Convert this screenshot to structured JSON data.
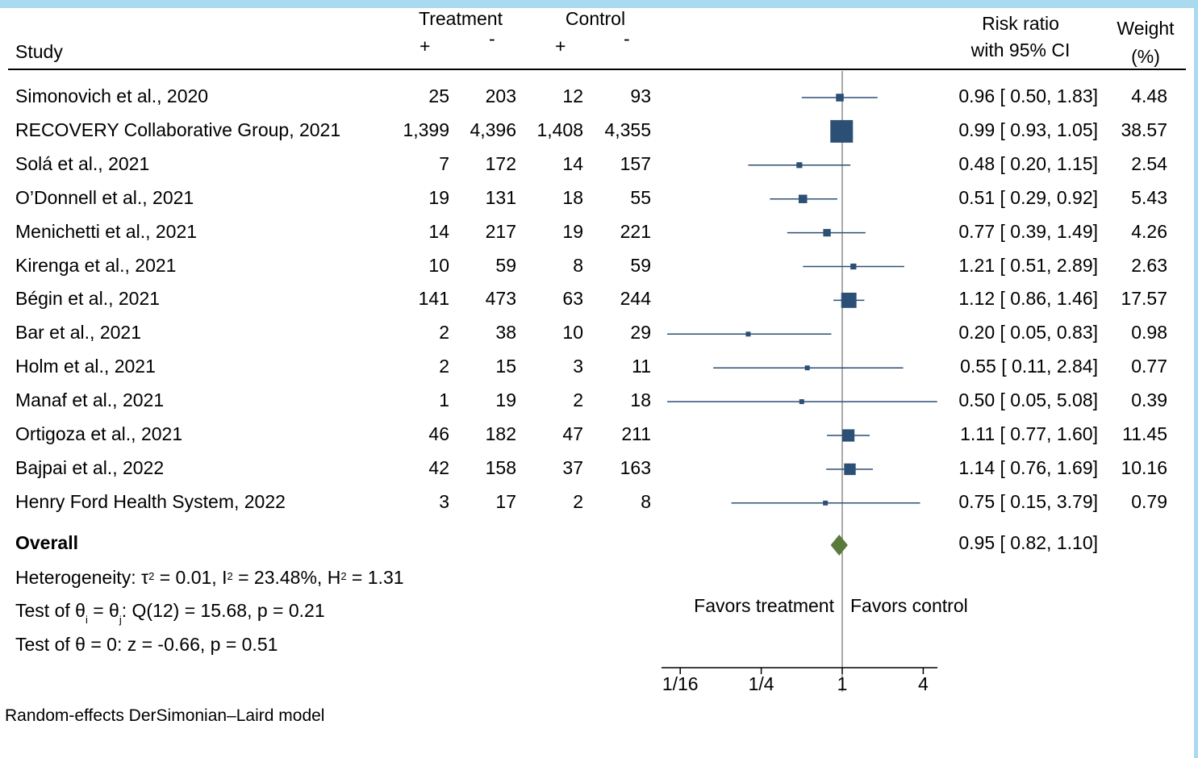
{
  "header": {
    "treatment": "Treatment",
    "control": "Control",
    "plus": "+",
    "minus": "-",
    "study": "Study",
    "rr_line1": "Risk ratio",
    "rr_line2": "with 95% CI",
    "weight_line1": "Weight",
    "weight_line2": "(%)"
  },
  "studies": [
    {
      "study": "Simonovich et al., 2020",
      "tp": "25",
      "tm": "203",
      "cp": "12",
      "cm": "93",
      "ci": "0.96 [ 0.50,  1.83]",
      "weight": "4.48"
    },
    {
      "study": "RECOVERY Collaborative Group, 2021",
      "tp": "1,399",
      "tm": "4,396",
      "cp": "1,408",
      "cm": "4,355",
      "ci": "0.99 [ 0.93,  1.05]",
      "weight": "38.57"
    },
    {
      "study": "Solá et al., 2021",
      "tp": "7",
      "tm": "172",
      "cp": "14",
      "cm": "157",
      "ci": "0.48 [ 0.20,  1.15]",
      "weight": "2.54"
    },
    {
      "study": "O’Donnell et al., 2021",
      "tp": "19",
      "tm": "131",
      "cp": "18",
      "cm": "55",
      "ci": "0.51 [ 0.29,  0.92]",
      "weight": "5.43"
    },
    {
      "study": "Menichetti et al., 2021",
      "tp": "14",
      "tm": "217",
      "cp": "19",
      "cm": "221",
      "ci": "0.77 [ 0.39,  1.49]",
      "weight": "4.26"
    },
    {
      "study": "Kirenga et al., 2021",
      "tp": "10",
      "tm": "59",
      "cp": "8",
      "cm": "59",
      "ci": "1.21 [ 0.51,  2.89]",
      "weight": "2.63"
    },
    {
      "study": "Bégin et al., 2021",
      "tp": "141",
      "tm": "473",
      "cp": "63",
      "cm": "244",
      "ci": "1.12 [ 0.86,  1.46]",
      "weight": "17.57"
    },
    {
      "study": "Bar et al., 2021",
      "tp": "2",
      "tm": "38",
      "cp": "10",
      "cm": "29",
      "ci": "0.20 [ 0.05,  0.83]",
      "weight": "0.98"
    },
    {
      "study": "Holm et al., 2021",
      "tp": "2",
      "tm": "15",
      "cp": "3",
      "cm": "11",
      "ci": "0.55 [ 0.11,  2.84]",
      "weight": "0.77"
    },
    {
      "study": "Manaf et al., 2021",
      "tp": "1",
      "tm": "19",
      "cp": "2",
      "cm": "18",
      "ci": "0.50 [ 0.05,  5.08]",
      "weight": "0.39"
    },
    {
      "study": "Ortigoza et al., 2021",
      "tp": "46",
      "tm": "182",
      "cp": "47",
      "cm": "211",
      "ci": "1.11 [ 0.77,  1.60]",
      "weight": "11.45"
    },
    {
      "study": "Bajpai et al., 2022",
      "tp": "42",
      "tm": "158",
      "cp": "37",
      "cm": "163",
      "ci": "1.14 [ 0.76,  1.69]",
      "weight": "10.16"
    },
    {
      "study": "Henry Ford Health System, 2022",
      "tp": "3",
      "tm": "17",
      "cp": "2",
      "cm": "8",
      "ci": "0.75 [ 0.15,  3.79]",
      "weight": "0.79"
    }
  ],
  "overall": {
    "label": "Overall",
    "ci": "0.95 [ 0.82,  1.10]"
  },
  "stats": {
    "het_prefix": "Heterogeneity: τ",
    "tau_sup": "2",
    "het_mid1": " = 0.01, I",
    "i_sup": "2",
    "het_mid2": " = 23.48%, H",
    "h_sup": "2",
    "het_end": " = 1.31",
    "test1_a": "Test of θ",
    "sub_i": "i",
    "test1_b": " = θ",
    "sub_j": "j",
    "test1_c": ": Q(12) = 15.68, p = 0.21",
    "test2": "Test of θ = 0: z = -0.66, p = 0.51"
  },
  "favors_treatment": "Favors treatment",
  "favors_control": "Favors control",
  "model_note": "Random-effects DerSimonian–Laird model",
  "colors": {
    "marker": "#2c4f75",
    "diamond": "#5a7a3c",
    "band": "#a9daf0"
  },
  "chart_data": {
    "type": "forest",
    "scale": "log2",
    "xlim": [
      0.0625,
      4
    ],
    "x_ticks": [
      0.0625,
      0.25,
      1,
      4
    ],
    "x_tick_labels": [
      "1/16",
      "1/4",
      "1",
      "4"
    ],
    "null_line": 1,
    "points": [
      {
        "rr": 0.96,
        "lo": 0.5,
        "hi": 1.83,
        "weight": 4.48
      },
      {
        "rr": 0.99,
        "lo": 0.93,
        "hi": 1.05,
        "weight": 38.57
      },
      {
        "rr": 0.48,
        "lo": 0.2,
        "hi": 1.15,
        "weight": 2.54
      },
      {
        "rr": 0.51,
        "lo": 0.29,
        "hi": 0.92,
        "weight": 5.43
      },
      {
        "rr": 0.77,
        "lo": 0.39,
        "hi": 1.49,
        "weight": 4.26
      },
      {
        "rr": 1.21,
        "lo": 0.51,
        "hi": 2.89,
        "weight": 2.63
      },
      {
        "rr": 1.12,
        "lo": 0.86,
        "hi": 1.46,
        "weight": 17.57
      },
      {
        "rr": 0.2,
        "lo": 0.05,
        "hi": 0.83,
        "weight": 0.98
      },
      {
        "rr": 0.55,
        "lo": 0.11,
        "hi": 2.84,
        "weight": 0.77
      },
      {
        "rr": 0.5,
        "lo": 0.05,
        "hi": 5.08,
        "weight": 0.39
      },
      {
        "rr": 1.11,
        "lo": 0.77,
        "hi": 1.6,
        "weight": 11.45
      },
      {
        "rr": 1.14,
        "lo": 0.76,
        "hi": 1.69,
        "weight": 10.16
      },
      {
        "rr": 0.75,
        "lo": 0.15,
        "hi": 3.79,
        "weight": 0.79
      }
    ],
    "overall": {
      "rr": 0.95,
      "lo": 0.82,
      "hi": 1.1
    }
  }
}
